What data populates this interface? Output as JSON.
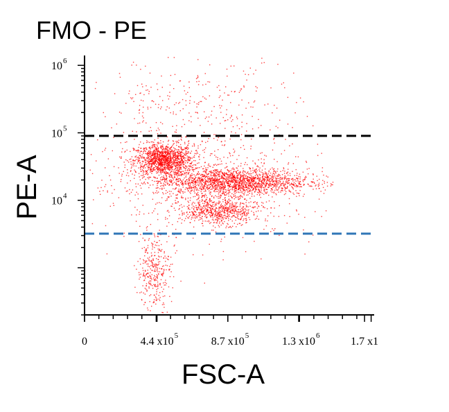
{
  "chart_data": {
    "type": "scatter",
    "title": "FMO - PE",
    "xlabel": "FSC-A",
    "ylabel": "PE-A",
    "x_scale": "linear",
    "y_scale": "log",
    "xlim": [
      0,
      1750000
    ],
    "ylim": [
      200,
      1400000
    ],
    "x_ticks": [
      {
        "value": 0,
        "label": "0"
      },
      {
        "value": 440000,
        "label": "4.4 x10",
        "exp": "5"
      },
      {
        "value": 870000,
        "label": "8.7 x10",
        "exp": "5"
      },
      {
        "value": 1300000,
        "label": "1.3 x10",
        "exp": "6"
      },
      {
        "value": 1700000,
        "label": "1.7 x1"
      }
    ],
    "y_ticks": [
      {
        "value": 10000,
        "label": "10",
        "exp": "4"
      },
      {
        "value": 100000,
        "label": "10",
        "exp": "5"
      },
      {
        "value": 1000000,
        "label": "10",
        "exp": "6"
      }
    ],
    "gates": [
      {
        "name": "upper-gate",
        "y": 90000,
        "color": "#000000",
        "style": "dashed"
      },
      {
        "name": "lower-gate",
        "y": 3200,
        "color": "#2e75b6",
        "style": "dashed"
      }
    ],
    "point_color": "#ff0000",
    "clusters": [
      {
        "cx": 480000,
        "cy": 40000,
        "sx": 90000,
        "sy_log": 0.12,
        "n": 1300
      },
      {
        "cx": 900000,
        "cy": 19000,
        "sx": 230000,
        "sy_log": 0.1,
        "n": 1800
      },
      {
        "cx": 820000,
        "cy": 7000,
        "sx": 120000,
        "sy_log": 0.1,
        "n": 650
      },
      {
        "cx": 420000,
        "cy": 900,
        "sx": 50000,
        "sy_log": 0.28,
        "n": 320
      },
      {
        "cx": 700000,
        "cy": 20000,
        "sx": 350000,
        "sy_log": 0.45,
        "n": 600
      },
      {
        "cx": 650000,
        "cy": 250000,
        "sx": 320000,
        "sy_log": 0.35,
        "n": 280
      }
    ]
  }
}
